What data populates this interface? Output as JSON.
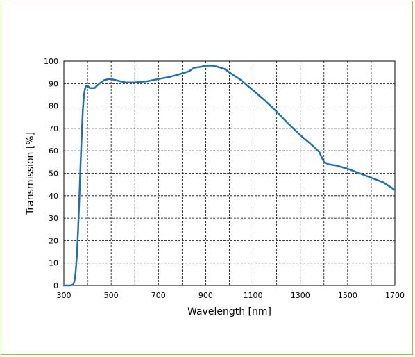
{
  "chart_data": {
    "type": "line",
    "title": "",
    "xlabel": "Wavelength [nm]",
    "ylabel": "Transmission [%]",
    "xlim": [
      300,
      1700
    ],
    "ylim": [
      0,
      100
    ],
    "x_ticks": [
      300,
      500,
      700,
      900,
      1100,
      1300,
      1500,
      1700
    ],
    "y_ticks": [
      0,
      10,
      20,
      30,
      40,
      50,
      60,
      70,
      80,
      90,
      100
    ],
    "x_grid_step": 100,
    "y_grid_step": 10,
    "grid": true,
    "legend": "none",
    "line_color": "#1f6fb5",
    "border_color": "#8dc63f",
    "series": [
      {
        "x": [
          300,
          330,
          340,
          345,
          350,
          355,
          360,
          365,
          370,
          375,
          380,
          385,
          390,
          395,
          400,
          410,
          420,
          430,
          440,
          450,
          470,
          490,
          500,
          520,
          540,
          560,
          580,
          600,
          650,
          700,
          750,
          800,
          830,
          850,
          880,
          900,
          930,
          950,
          980,
          1000,
          1050,
          1100,
          1150,
          1200,
          1250,
          1300,
          1350,
          1380,
          1400,
          1420,
          1450,
          1500,
          1550,
          1600,
          1650,
          1680,
          1700
        ],
        "y": [
          0,
          0,
          0.5,
          2,
          6,
          13,
          24,
          37,
          52,
          66,
          78,
          85,
          88,
          89,
          89,
          88,
          88,
          88,
          89,
          90,
          91.5,
          92,
          92,
          91.5,
          91,
          90.5,
          90.5,
          90.5,
          91,
          92,
          93,
          94.5,
          95.5,
          97,
          97.5,
          98,
          98,
          97.5,
          96.5,
          95,
          91.5,
          87,
          82.5,
          77.5,
          72,
          67,
          62.5,
          59.5,
          55,
          54,
          53.5,
          52,
          50,
          48,
          46,
          44,
          42.5
        ]
      }
    ]
  }
}
